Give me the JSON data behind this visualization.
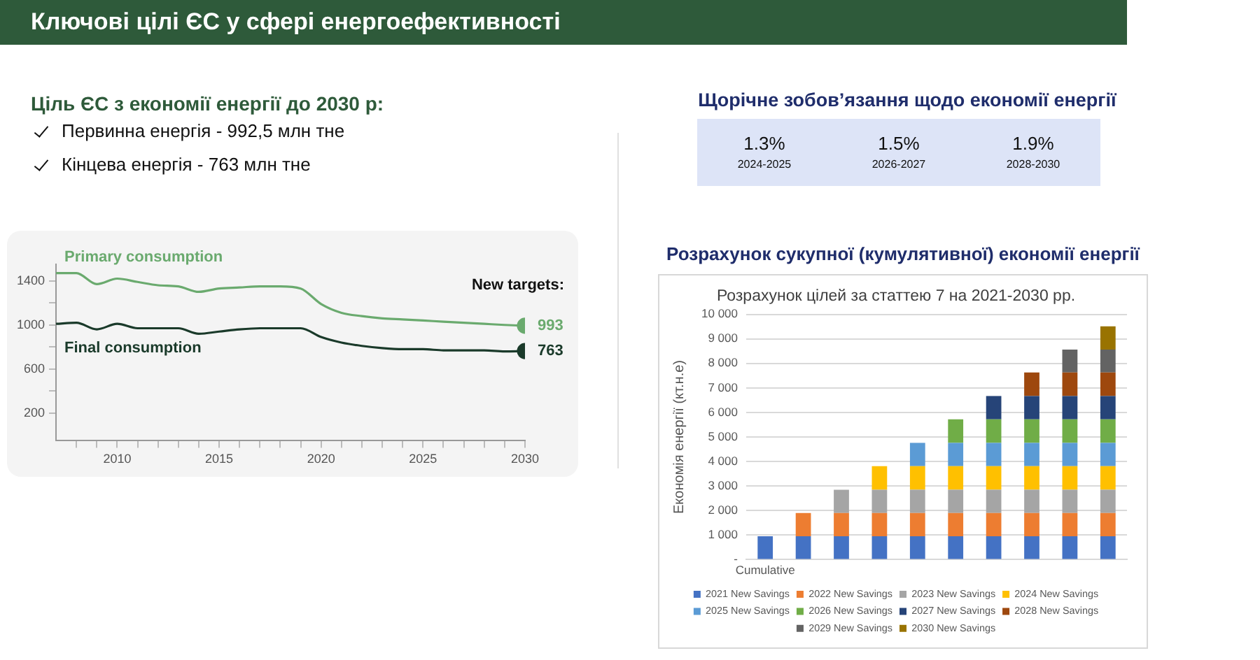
{
  "chart_data": [
    {
      "type": "other",
      "title": "Ключові цілі ЄС у сфері енергоефективності",
      "subtitle": "Ціль ЄС з економії енергії до 2030 р:",
      "annotations": [
        "Первинна енергія - 992,5 млн тне",
        "Кінцева енергія -  763 млн тне"
      ]
    },
    {
      "type": "other",
      "title": "Щорічне зобов’язання щодо економії енергії",
      "categories": [
        "2024-2025",
        "2026-2027",
        "2028-2030"
      ],
      "value_labels": [
        "1.3%",
        "1.5%",
        "1.9%"
      ]
    },
    {
      "type": "line",
      "x": [
        2007,
        2008,
        2009,
        2010,
        2011,
        2012,
        2013,
        2014,
        2015,
        2016,
        2017,
        2018,
        2019,
        2020,
        2021,
        2022,
        2023,
        2024,
        2025,
        2026,
        2027,
        2028,
        2029,
        2030
      ],
      "series": [
        {
          "name": "Primary consumption",
          "color": "#6aaa6e",
          "values": [
            1470,
            1470,
            1370,
            1420,
            1390,
            1360,
            1350,
            1300,
            1330,
            1340,
            1350,
            1350,
            1330,
            1190,
            1110,
            1080,
            1060,
            1050,
            1040,
            1030,
            1020,
            1010,
            1000,
            993
          ],
          "value_labels": [
            null,
            null,
            null,
            null,
            null,
            null,
            null,
            null,
            null,
            null,
            null,
            null,
            null,
            null,
            null,
            null,
            null,
            null,
            null,
            null,
            null,
            null,
            null,
            "993"
          ]
        },
        {
          "name": "Final consumption",
          "color": "#1a3a2a",
          "values": [
            1010,
            1020,
            960,
            1010,
            970,
            970,
            970,
            920,
            940,
            960,
            970,
            970,
            970,
            890,
            840,
            810,
            790,
            780,
            780,
            770,
            770,
            770,
            760,
            763
          ],
          "value_labels": [
            null,
            null,
            null,
            null,
            null,
            null,
            null,
            null,
            null,
            null,
            null,
            null,
            null,
            null,
            null,
            null,
            null,
            null,
            null,
            null,
            null,
            null,
            null,
            "763"
          ]
        }
      ],
      "xlim": [
        2007,
        2030
      ],
      "xticks": [
        {
          "value": 2008,
          "label": null
        },
        {
          "value": 2009,
          "label": null
        },
        2010,
        {
          "value": 2011,
          "label": null
        },
        {
          "value": 2012,
          "label": null
        },
        {
          "value": 2013,
          "label": null
        },
        {
          "value": 2014,
          "label": null
        },
        2015,
        {
          "value": 2016,
          "label": null
        },
        {
          "value": 2017,
          "label": null
        },
        {
          "value": 2018,
          "label": null
        },
        {
          "value": 2019,
          "label": null
        },
        2020,
        {
          "value": 2021,
          "label": null
        },
        {
          "value": 2022,
          "label": null
        },
        {
          "value": 2023,
          "label": null
        },
        {
          "value": 2024,
          "label": null
        },
        2025,
        {
          "value": 2026,
          "label": null
        },
        {
          "value": 2027,
          "label": null
        },
        {
          "value": 2028,
          "label": null
        },
        {
          "value": 2029,
          "label": null
        },
        2030
      ],
      "ylim": [
        -50,
        1550
      ],
      "yticks": [
        200,
        {
          "value": 400,
          "label": null
        },
        600,
        {
          "value": 800,
          "label": null
        },
        1000,
        {
          "value": 1200,
          "label": null
        },
        1400
      ],
      "grid": false,
      "legend": false,
      "line_style": "solid",
      "annotations": [
        "New targets:"
      ]
    },
    {
      "type": "bar",
      "title": "Розрахунок цілей за статтею 7 на 2021-2030 рр.",
      "subtitle": "Розрахунок сукупної (кумулятивної) економії енергії",
      "ylabel": "Економія енергії (кт.н.е)",
      "stacked": true,
      "categories": [
        "Cumulative",
        null,
        null,
        null,
        null,
        null,
        null,
        null,
        null,
        null
      ],
      "series": [
        {
          "name": "2021 New Savings",
          "color": "#4472c4",
          "values": [
            950,
            950,
            950,
            950,
            950,
            950,
            950,
            950,
            950,
            950
          ]
        },
        {
          "name": "2022 New Savings",
          "color": "#ed7d31",
          "values": [
            null,
            950,
            950,
            950,
            950,
            950,
            950,
            950,
            950,
            950
          ]
        },
        {
          "name": "2023 New Savings",
          "color": "#a5a5a5",
          "values": [
            null,
            null,
            950,
            950,
            950,
            950,
            950,
            950,
            950,
            950
          ]
        },
        {
          "name": "2024 New Savings",
          "color": "#ffc000",
          "values": [
            null,
            null,
            null,
            960,
            960,
            960,
            960,
            960,
            960,
            960
          ]
        },
        {
          "name": "2025 New Savings",
          "color": "#5b9bd5",
          "values": [
            null,
            null,
            null,
            null,
            950,
            950,
            950,
            950,
            950,
            950
          ]
        },
        {
          "name": "2026 New Savings",
          "color": "#70ad47",
          "values": [
            null,
            null,
            null,
            null,
            null,
            960,
            960,
            960,
            960,
            960
          ]
        },
        {
          "name": "2027 New Savings",
          "color": "#264478",
          "values": [
            null,
            null,
            null,
            null,
            null,
            null,
            950,
            950,
            950,
            950
          ]
        },
        {
          "name": "2028 New Savings",
          "color": "#9e480e",
          "values": [
            null,
            null,
            null,
            null,
            null,
            null,
            null,
            960,
            960,
            960
          ]
        },
        {
          "name": "2029 New Savings",
          "color": "#636363",
          "values": [
            null,
            null,
            null,
            null,
            null,
            null,
            null,
            null,
            930,
            930
          ]
        },
        {
          "name": "2030 New Savings",
          "color": "#997300",
          "values": [
            null,
            null,
            null,
            null,
            null,
            null,
            null,
            null,
            null,
            950
          ]
        }
      ],
      "ylim": [
        0,
        10000
      ],
      "yticks": [
        {
          "value": 0,
          "label": "-"
        },
        {
          "value": 1000,
          "label": "1 000"
        },
        {
          "value": 2000,
          "label": "2 000"
        },
        {
          "value": 3000,
          "label": "3 000"
        },
        {
          "value": 4000,
          "label": "4 000"
        },
        {
          "value": 5000,
          "label": "5 000"
        },
        {
          "value": 6000,
          "label": "6 000"
        },
        {
          "value": 7000,
          "label": "7 000"
        },
        {
          "value": 8000,
          "label": "8 000"
        },
        {
          "value": 9000,
          "label": "9 000"
        },
        {
          "value": 10000,
          "label": "10 000"
        }
      ],
      "grid": "y",
      "legend": "bottom"
    }
  ]
}
